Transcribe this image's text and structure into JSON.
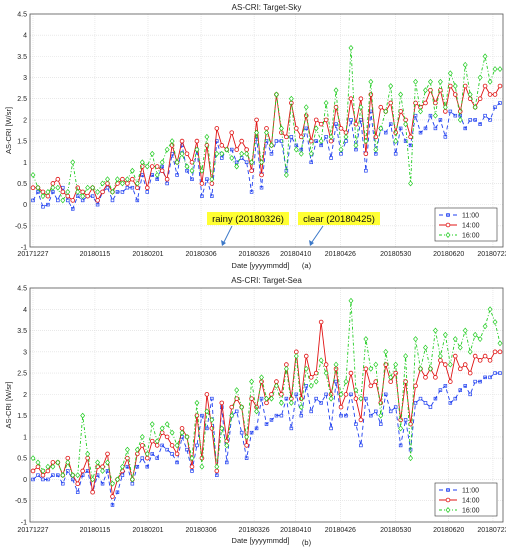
{
  "colors": {
    "s1100": "#1f3ff0",
    "s1400": "#e01414",
    "s1600": "#22cc22",
    "annotation_bg": "#ffff33",
    "arrow": "#3b78c8"
  },
  "chart_data": [
    {
      "type": "line",
      "title": "AS-CRI: Target-Sky",
      "xlabel": "Date [yyyymmdd]",
      "ylabel": "AS-CRI [W/sr]",
      "panel_label": "(a)",
      "ylim": [
        -1,
        4.5
      ],
      "yticks": [
        "-1",
        "-0.5",
        "0",
        "0.5",
        "1",
        "1.5",
        "2",
        "2.5",
        "3",
        "3.5",
        "4",
        "4.5"
      ],
      "x_tick_labels": [
        "20171227",
        "20180115",
        "20180201",
        "20180306",
        "20180326",
        "20180410",
        "20180426",
        "20180530",
        "20180620",
        "20180723"
      ],
      "grid": true,
      "legend": "bottom-right",
      "annotations": [
        "rainy (20180326)",
        "clear (20180425)"
      ],
      "series": [
        {
          "name": "11:00",
          "values": [
            0.1,
            0.3,
            -0.05,
            0.0,
            0.3,
            0.1,
            0.4,
            0.1,
            -0.1,
            0.2,
            0.1,
            0.2,
            0.2,
            0.0,
            0.3,
            0.4,
            0.1,
            0.3,
            0.3,
            0.4,
            0.4,
            0.1,
            0.7,
            0.3,
            0.7,
            0.6,
            0.9,
            0.5,
            1.2,
            0.7,
            1.4,
            0.8,
            0.6,
            1.3,
            0.2,
            0.6,
            0.2,
            1.5,
            1.1,
            1.3,
            1.3,
            1.0,
            1.1,
            1.0,
            0.3,
            1.6,
            0.4,
            1.5,
            1.2,
            1.5,
            1.5,
            0.8,
            1.6,
            1.4,
            1.3,
            1.8,
            1.0,
            1.5,
            1.4,
            1.6,
            1.1,
            1.9,
            1.2,
            1.5,
            2.0,
            1.3,
            2.0,
            0.8,
            2.2,
            1.2,
            1.8,
            1.7,
            1.9,
            1.2,
            1.8,
            1.5,
            1.4,
            2.1,
            1.7,
            1.8,
            2.1,
            1.8,
            2.0,
            1.6,
            2.2,
            2.1,
            2.1,
            1.8,
            2.0,
            2.0,
            1.9,
            2.1,
            2.0,
            2.3,
            2.4
          ]
        },
        {
          "name": "14:00",
          "values": [
            0.4,
            0.4,
            0.3,
            0.2,
            0.5,
            0.6,
            0.3,
            0.2,
            0.1,
            0.4,
            0.3,
            0.2,
            0.4,
            0.1,
            0.3,
            0.5,
            0.3,
            0.5,
            0.6,
            0.5,
            0.6,
            0.4,
            0.9,
            0.4,
            0.9,
            0.9,
            0.8,
            0.6,
            1.4,
            1.0,
            1.5,
            1.2,
            1.0,
            1.5,
            0.5,
            1.4,
            0.5,
            1.8,
            1.4,
            1.3,
            1.7,
            1.3,
            1.5,
            1.3,
            0.8,
            2.0,
            0.7,
            1.8,
            1.4,
            2.6,
            1.7,
            1.6,
            2.4,
            1.8,
            1.6,
            2.1,
            1.5,
            2.0,
            1.9,
            2.0,
            1.5,
            2.3,
            1.8,
            1.7,
            2.5,
            1.9,
            2.5,
            1.2,
            2.6,
            1.6,
            2.3,
            2.2,
            2.4,
            1.7,
            2.2,
            2.0,
            1.6,
            2.4,
            2.3,
            2.4,
            2.7,
            2.4,
            2.7,
            2.2,
            2.8,
            2.6,
            2.2,
            2.8,
            2.5,
            2.3,
            2.5,
            2.8,
            2.6,
            2.6,
            2.8
          ]
        },
        {
          "name": "16:00",
          "values": [
            0.7,
            0.4,
            0.2,
            0.3,
            0.4,
            0.4,
            0.1,
            0.3,
            1.0,
            0.3,
            0.2,
            0.4,
            0.4,
            0.3,
            0.5,
            0.6,
            0.3,
            0.6,
            0.5,
            0.6,
            0.8,
            0.5,
            1.0,
            0.9,
            1.2,
            0.7,
            1.0,
            1.3,
            1.5,
            1.0,
            1.2,
            0.9,
            0.8,
            1.3,
            0.8,
            1.6,
            0.6,
            1.2,
            1.2,
            1.3,
            1.1,
            0.9,
            1.2,
            1.2,
            1.0,
            1.7,
            1.0,
            1.7,
            1.4,
            2.6,
            1.8,
            0.7,
            2.5,
            1.3,
            1.2,
            2.3,
            1.2,
            1.8,
            1.5,
            2.4,
            1.6,
            2.7,
            1.3,
            1.6,
            3.7,
            1.4,
            2.3,
            1.5,
            2.9,
            1.3,
            1.8,
            2.2,
            2.8,
            1.5,
            2.6,
            1.9,
            0.5,
            2.9,
            2.2,
            2.7,
            2.9,
            2.1,
            2.9,
            2.3,
            3.1,
            2.8,
            2.0,
            3.3,
            2.6,
            2.3,
            3.0,
            3.5,
            2.9,
            3.2,
            3.2
          ]
        }
      ]
    },
    {
      "type": "line",
      "title": "AS-CRI: Target-Sea",
      "xlabel": "Date [yyyymmdd]",
      "ylabel": "AS-CRI [W/sr]",
      "panel_label": "(b)",
      "ylim": [
        -1,
        4.5
      ],
      "yticks": [
        "-1",
        "-0.5",
        "0",
        "0.5",
        "1",
        "1.5",
        "2",
        "2.5",
        "3",
        "3.5",
        "4",
        "4.5"
      ],
      "x_tick_labels": [
        "20171227",
        "20180115",
        "20180201",
        "20180306",
        "20180326",
        "20180410",
        "20180426",
        "20180530",
        "20180620",
        "20180723"
      ],
      "grid": true,
      "legend": "bottom-right",
      "series": [
        {
          "name": "11:00",
          "values": [
            0.0,
            0.1,
            0.0,
            0.0,
            0.1,
            0.1,
            -0.1,
            0.2,
            0.0,
            -0.3,
            0.1,
            0.2,
            -0.3,
            0.1,
            -0.1,
            0.2,
            -0.6,
            -0.3,
            0.1,
            0.3,
            -0.1,
            0.3,
            0.5,
            0.3,
            0.6,
            0.5,
            0.8,
            0.7,
            0.6,
            0.4,
            1.0,
            0.7,
            0.2,
            0.8,
            1.5,
            1.2,
            1.9,
            0.1,
            1.7,
            0.4,
            1.5,
            1.6,
            1.1,
            0.5,
            1.1,
            1.2,
            1.9,
            1.3,
            1.4,
            1.5,
            1.5,
            1.9,
            1.2,
            2.0,
            1.5,
            2.2,
            1.6,
            1.9,
            1.8,
            2.0,
            1.2,
            2.3,
            1.5,
            1.5,
            2.0,
            1.3,
            0.8,
            1.9,
            1.5,
            1.6,
            1.3,
            2.0,
            1.6,
            1.7,
            0.8,
            1.4,
            0.7,
            1.8,
            1.9,
            1.8,
            1.7,
            1.9,
            2.1,
            2.2,
            1.8,
            1.9,
            2.1,
            2.2,
            2.0,
            2.3,
            2.3,
            2.4,
            2.4,
            2.5,
            2.5
          ]
        },
        {
          "name": "14:00",
          "values": [
            0.2,
            0.3,
            0.1,
            0.2,
            0.4,
            0.4,
            0.1,
            0.5,
            0.1,
            -0.1,
            0.2,
            0.5,
            -0.3,
            0.3,
            0.3,
            0.6,
            -0.4,
            0.0,
            0.2,
            0.5,
            0.0,
            0.6,
            0.8,
            0.5,
            0.9,
            0.8,
            1.1,
            1.0,
            0.8,
            0.6,
            1.2,
            1.0,
            0.3,
            1.5,
            0.5,
            2.0,
            1.2,
            0.2,
            1.8,
            0.9,
            1.7,
            1.9,
            1.7,
            0.8,
            1.9,
            1.7,
            2.3,
            1.8,
            2.0,
            2.3,
            2.0,
            2.7,
            1.9,
            3.0,
            1.9,
            2.9,
            2.4,
            2.5,
            3.7,
            2.7,
            2.0,
            2.6,
            1.7,
            2.0,
            2.5,
            1.9,
            1.4,
            2.6,
            2.2,
            2.3,
            1.8,
            2.7,
            2.3,
            2.5,
            1.4,
            2.3,
            1.3,
            2.2,
            2.6,
            2.4,
            2.6,
            2.4,
            2.8,
            2.7,
            2.3,
            2.9,
            2.6,
            2.7,
            2.5,
            2.9,
            2.8,
            2.9,
            2.8,
            3.0,
            3.0
          ]
        },
        {
          "name": "16:00",
          "values": [
            0.5,
            0.4,
            0.2,
            0.3,
            0.3,
            0.4,
            0.1,
            0.4,
            0.1,
            0.1,
            1.5,
            0.6,
            0.0,
            0.4,
            0.2,
            0.4,
            -0.1,
            0.0,
            0.3,
            0.7,
            0.0,
            0.7,
            1.0,
            0.6,
            1.3,
            0.9,
            1.2,
            1.3,
            1.1,
            0.8,
            1.1,
            1.0,
            0.5,
            1.8,
            0.3,
            1.6,
            1.4,
            0.3,
            1.2,
            0.8,
            1.5,
            2.1,
            1.7,
            1.0,
            2.3,
            1.6,
            2.4,
            1.9,
            1.9,
            2.2,
            1.8,
            2.6,
            1.8,
            2.9,
            1.7,
            2.6,
            2.2,
            2.3,
            2.8,
            2.5,
            1.9,
            2.7,
            2.0,
            2.3,
            4.2,
            2.1,
            1.9,
            3.3,
            2.6,
            2.7,
            1.5,
            3.0,
            2.4,
            2.7,
            1.2,
            2.9,
            0.5,
            3.3,
            2.6,
            3.1,
            2.6,
            3.5,
            2.9,
            3.4,
            2.7,
            3.3,
            3.1,
            3.5,
            3.0,
            3.4,
            3.3,
            3.6,
            4.0,
            3.7,
            3.2
          ]
        }
      ]
    }
  ]
}
